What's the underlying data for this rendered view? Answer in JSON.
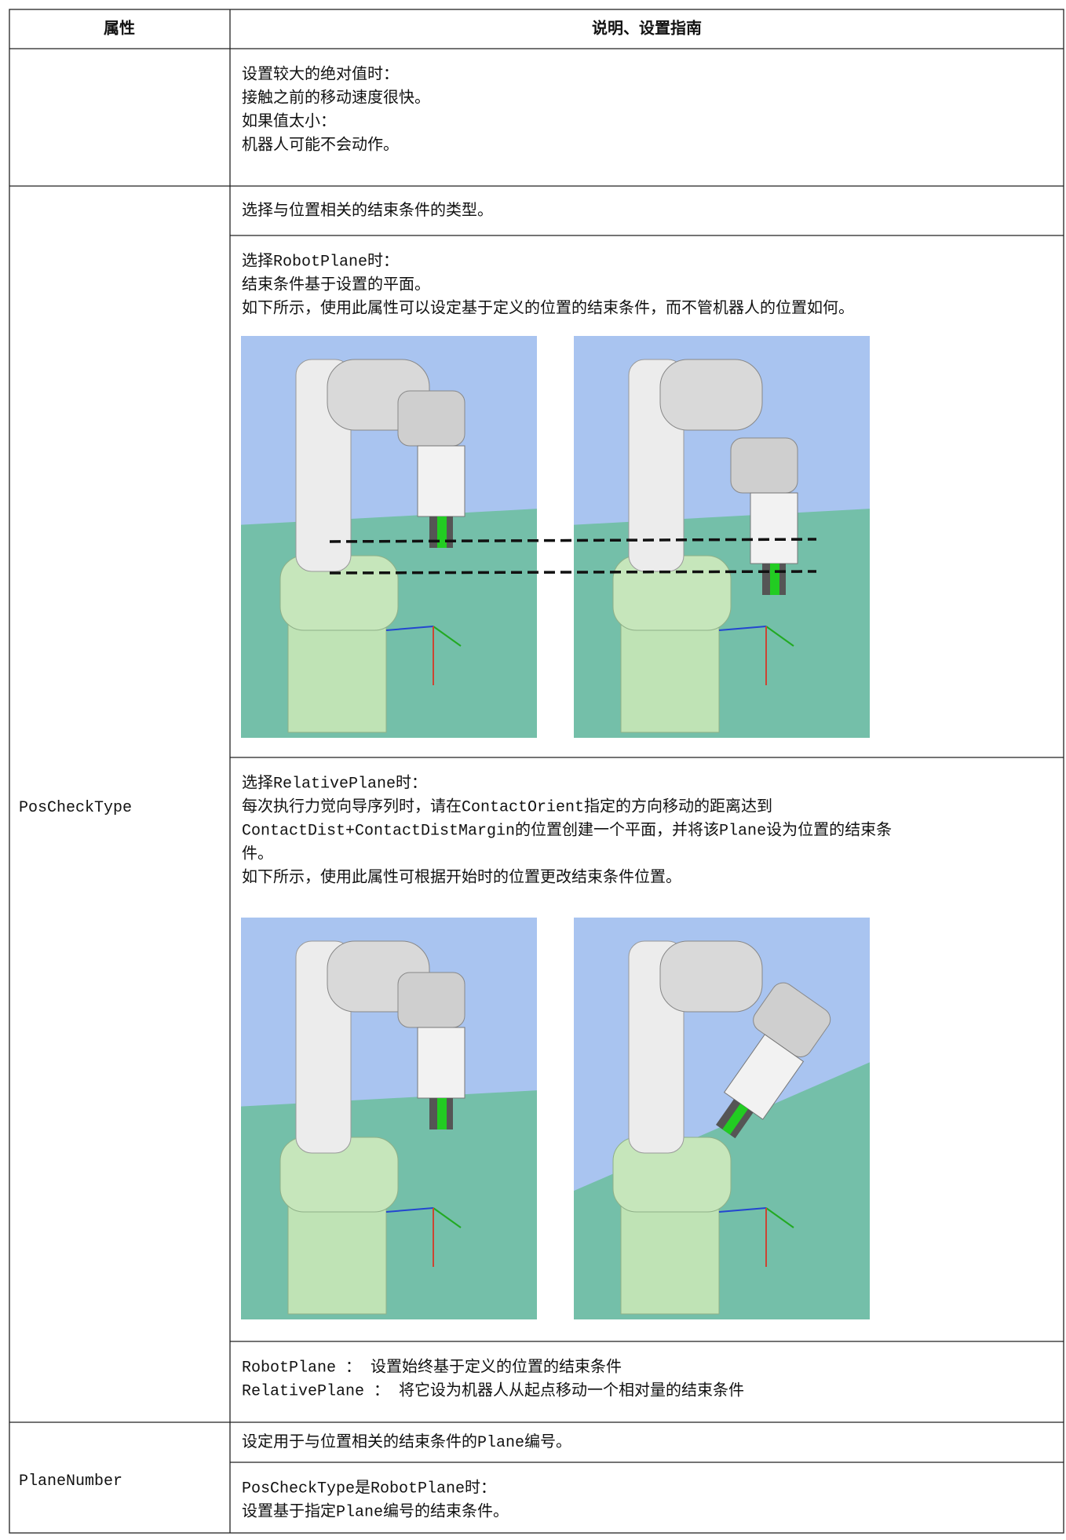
{
  "header": {
    "columns": [
      "属性",
      "说明、设置指南"
    ]
  },
  "rows": [
    {
      "description": [
        [
          "设置较大的绝对值时：",
          "接触之前的移动速度很快。",
          "如果值太小：",
          "机器人可能不会动作。"
        ]
      ]
    },
    {
      "property": "PosCheckType",
      "description": [
        [
          "选择与位置相关的结束条件的类型。"
        ],
        [
          "选择RobotPlane时：",
          "结束条件基于设置的平面。",
          "如下所示，使用此属性可以设定基于定义的位置的结束条件，而不管机器人的位置如何。"
        ],
        [
          "选择RelativePlane时：",
          "每次执行力觉向导序列时，请在ContactOrient指定的方向移动的距离达到",
          "ContactDist+ContactDistMargin的位置创建一个平面，并将该Plane设为位置的结束条",
          "件。",
          "如下所示，使用此属性可根据开始时的位置更改结束条件位置。"
        ],
        [
          "RobotPlane ： 设置始终基于定义的位置的结束条件",
          "RelativePlane ： 将它设为机器人从起点移动一个相对量的结束条件"
        ]
      ]
    },
    {
      "property": "PlaneNumber",
      "description": [
        [
          "设定用于与位置相关的结束条件的Plane编号。"
        ],
        [
          "PosCheckType是RobotPlane时：",
          "设置基于指定Plane编号的结束条件。"
        ]
      ]
    }
  ]
}
